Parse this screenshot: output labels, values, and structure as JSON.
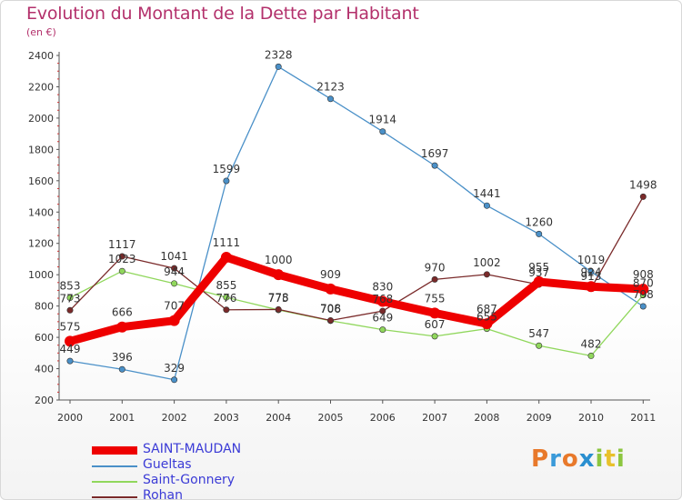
{
  "header": {
    "title": "Evolution du Montant de la Dette par Habitant",
    "subtitle": "(en €)"
  },
  "logo": {
    "text": "Proxiti",
    "colors": [
      "#e8792b",
      "#3a9ad9",
      "#e8792b",
      "#2a8fd0",
      "#8cc63f",
      "#e8c12b",
      "#8cc63f"
    ]
  },
  "chart_data": {
    "type": "line",
    "title": "Evolution du Montant de la Dette par Habitant",
    "ylabel": "(en €)",
    "xlabel": "",
    "x": [
      "2000",
      "2001",
      "2002",
      "2003",
      "2004",
      "2005",
      "2006",
      "2007",
      "2008",
      "2009",
      "2010",
      "2011"
    ],
    "ylim": [
      200,
      2400
    ],
    "yticks": [
      "200",
      "400",
      "600",
      "800",
      "1000",
      "1200",
      "1400",
      "1600",
      "1800",
      "2000",
      "2200",
      "2400"
    ],
    "grid": false,
    "legend_position": "bottom-left",
    "series": [
      {
        "name": "SAINT-MAUDAN",
        "color": "#ee0000",
        "values": [
          575,
          666,
          707,
          1111,
          1000,
          909,
          830,
          755,
          687,
          955,
          924,
          908
        ],
        "labels": [
          "575",
          "666",
          "707",
          "1111",
          "1000",
          "909",
          "830",
          "755",
          "687",
          "955",
          "924",
          "908"
        ]
      },
      {
        "name": "Gueltas",
        "color": "#4a90c8",
        "values": [
          449,
          396,
          329,
          1599,
          2328,
          2123,
          1914,
          1697,
          1441,
          1260,
          1019,
          798
        ],
        "labels": [
          "449",
          "396",
          "329",
          "1599",
          "2328",
          "2123",
          "1914",
          "1697",
          "1441",
          "1260",
          "1019",
          "798"
        ]
      },
      {
        "name": "Saint-Gonnery",
        "color": "#90d75c",
        "values": [
          853,
          1023,
          944,
          855,
          775,
          706,
          649,
          607,
          655,
          547,
          482,
          870
        ],
        "labels": [
          "853",
          "1023",
          "944",
          "855",
          "775",
          "706",
          "649",
          "607",
          "655",
          "547",
          "482",
          "870"
        ]
      },
      {
        "name": "Rohan",
        "color": "#7a2a2a",
        "values": [
          773,
          1117,
          1041,
          776,
          778,
          708,
          768,
          970,
          1002,
          937,
          913,
          1498
        ],
        "labels": [
          "773",
          "1117",
          "1041",
          "776",
          "778",
          "708",
          "768",
          "970",
          "1002",
          "937",
          "913",
          "1498"
        ]
      }
    ]
  }
}
